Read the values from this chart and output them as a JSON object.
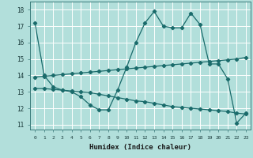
{
  "xlabel": "Humidex (Indice chaleur)",
  "background_color": "#b2dfdb",
  "grid_color": "#ffffff",
  "line_color": "#1a6b6b",
  "xlim": [
    -0.5,
    23.5
  ],
  "ylim": [
    10.7,
    18.5
  ],
  "yticks": [
    11,
    12,
    13,
    14,
    15,
    16,
    17,
    18
  ],
  "xticks": [
    0,
    1,
    2,
    3,
    4,
    5,
    6,
    7,
    8,
    9,
    10,
    11,
    12,
    13,
    14,
    15,
    16,
    17,
    18,
    19,
    20,
    21,
    22,
    23
  ],
  "line1_x": [
    0,
    1,
    2,
    3,
    4,
    5,
    6,
    7,
    8,
    9,
    10,
    11,
    12,
    13,
    14,
    15,
    16,
    17,
    18,
    19,
    20,
    21,
    22,
    23
  ],
  "line1_y": [
    17.2,
    14.0,
    13.3,
    13.1,
    13.0,
    12.7,
    12.2,
    11.9,
    11.9,
    13.1,
    14.5,
    16.0,
    17.2,
    17.9,
    17.0,
    16.9,
    16.9,
    17.8,
    17.1,
    14.7,
    14.7,
    13.8,
    11.1,
    11.7
  ],
  "line2_x": [
    0,
    1,
    2,
    3,
    4,
    5,
    6,
    7,
    8,
    9,
    10,
    11,
    12,
    13,
    14,
    15,
    16,
    17,
    18,
    19,
    20,
    21,
    22,
    23
  ],
  "line2_y": [
    13.9,
    13.95,
    14.0,
    14.05,
    14.1,
    14.15,
    14.2,
    14.25,
    14.3,
    14.35,
    14.4,
    14.45,
    14.5,
    14.55,
    14.6,
    14.65,
    14.7,
    14.75,
    14.8,
    14.85,
    14.9,
    14.95,
    15.0,
    15.1
  ],
  "line3_x": [
    0,
    1,
    2,
    3,
    4,
    5,
    6,
    7,
    8,
    9,
    10,
    11,
    12,
    13,
    14,
    15,
    16,
    17,
    18,
    19,
    20,
    21,
    22,
    23
  ],
  "line3_y": [
    13.2,
    13.2,
    13.15,
    13.1,
    13.05,
    13.0,
    12.95,
    12.85,
    12.75,
    12.65,
    12.55,
    12.45,
    12.4,
    12.3,
    12.2,
    12.1,
    12.05,
    12.0,
    11.95,
    11.9,
    11.85,
    11.8,
    11.7,
    11.65
  ]
}
